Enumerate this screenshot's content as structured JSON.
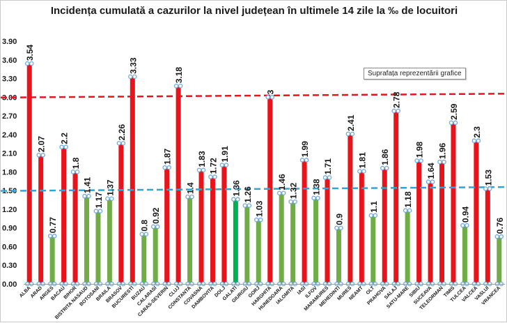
{
  "chart_data": {
    "type": "bar",
    "title": "Incidența cumulată a cazurilor la nivel județean în ultimele 14 zile la ‰ de locuitori",
    "xlabel": "",
    "ylabel": "",
    "ylim": [
      0,
      3.9
    ],
    "yticks": [
      "0.00",
      "0.30",
      "0.60",
      "0.90",
      "1.20",
      "1.50",
      "1.80",
      "2.10",
      "2.40",
      "2.70",
      "3.00",
      "3.30",
      "3.60",
      "3.90"
    ],
    "grid": false,
    "categories": [
      "ALBA",
      "ARAD",
      "ARGES",
      "BACAU",
      "BIHOR",
      "BISTRITA NASAUD",
      "BOTOSANI",
      "BRAILA",
      "BRASOV",
      "BUCURESTI",
      "BUZAU",
      "CALARASI",
      "CARAS-SEVERIN",
      "CLUJ",
      "CONSTANTA",
      "COVASNA",
      "DAMBOVITA",
      "DOLJ",
      "GALATI",
      "GIURGIU",
      "GORJ",
      "HARGHITA",
      "HUNEDOARA",
      "IALOMITA",
      "IASI",
      "ILFOV",
      "MARAMURES",
      "MEHEDINTI",
      "MURES",
      "NEAMT",
      "OLT",
      "PRAHOVA",
      "SALAJ",
      "SATU-MARE",
      "SIBIU",
      "SUCEAVA",
      "TELEORMAN",
      "TIMIS",
      "TULCEA",
      "VALCEA",
      "VASLUI",
      "VRANCEA"
    ],
    "values": [
      3.54,
      2.07,
      0.77,
      2.2,
      1.8,
      1.41,
      1.17,
      1.37,
      2.26,
      3.33,
      0.8,
      0.92,
      1.87,
      3.18,
      1.4,
      1.83,
      1.72,
      1.91,
      1.36,
      1.26,
      1.03,
      3,
      1.46,
      1.32,
      1.99,
      1.38,
      1.71,
      0.9,
      2.41,
      1.81,
      1.1,
      1.86,
      2.78,
      1.18,
      1.98,
      1.64,
      1.96,
      2.59,
      0.94,
      2.3,
      1.53,
      0.76
    ],
    "value_labels": [
      "3.54",
      "2.07",
      "0.77",
      "2.2",
      "1.8",
      "1.41",
      "1.17",
      "1.37",
      "2.26",
      "3.33",
      "0.8",
      "0.92",
      "1.87",
      "3.18",
      "1.4",
      "1.83",
      "1.72",
      "1.91",
      "1.36",
      "1.26",
      "1.03",
      "3",
      "1.46",
      "1.32",
      "1.99",
      "1.38",
      "1.71",
      "0.9",
      "2.41",
      "1.81",
      "1.1",
      "1.86",
      "2.78",
      "1.18",
      "1.98",
      "1.64",
      "1.96",
      "2.59",
      "0.94",
      "2.3",
      "1.53",
      "0.76"
    ],
    "colors": {
      "above_threshold": "#e8141b",
      "below_threshold": "#70ad47",
      "highlight": "#00b050",
      "threshold_3": "#e8141b",
      "threshold_1_5": "#2ba6d8",
      "selection_handle": "#6fa8dc"
    },
    "highlight_category": "GALATI",
    "reference_lines": [
      {
        "value": 3.0,
        "color": "#e8141b",
        "style": "dashed"
      },
      {
        "value": 1.5,
        "color": "#2ba6d8",
        "style": "dashed"
      }
    ]
  },
  "tooltip": {
    "text": "Suprafața reprezentării grafice"
  }
}
